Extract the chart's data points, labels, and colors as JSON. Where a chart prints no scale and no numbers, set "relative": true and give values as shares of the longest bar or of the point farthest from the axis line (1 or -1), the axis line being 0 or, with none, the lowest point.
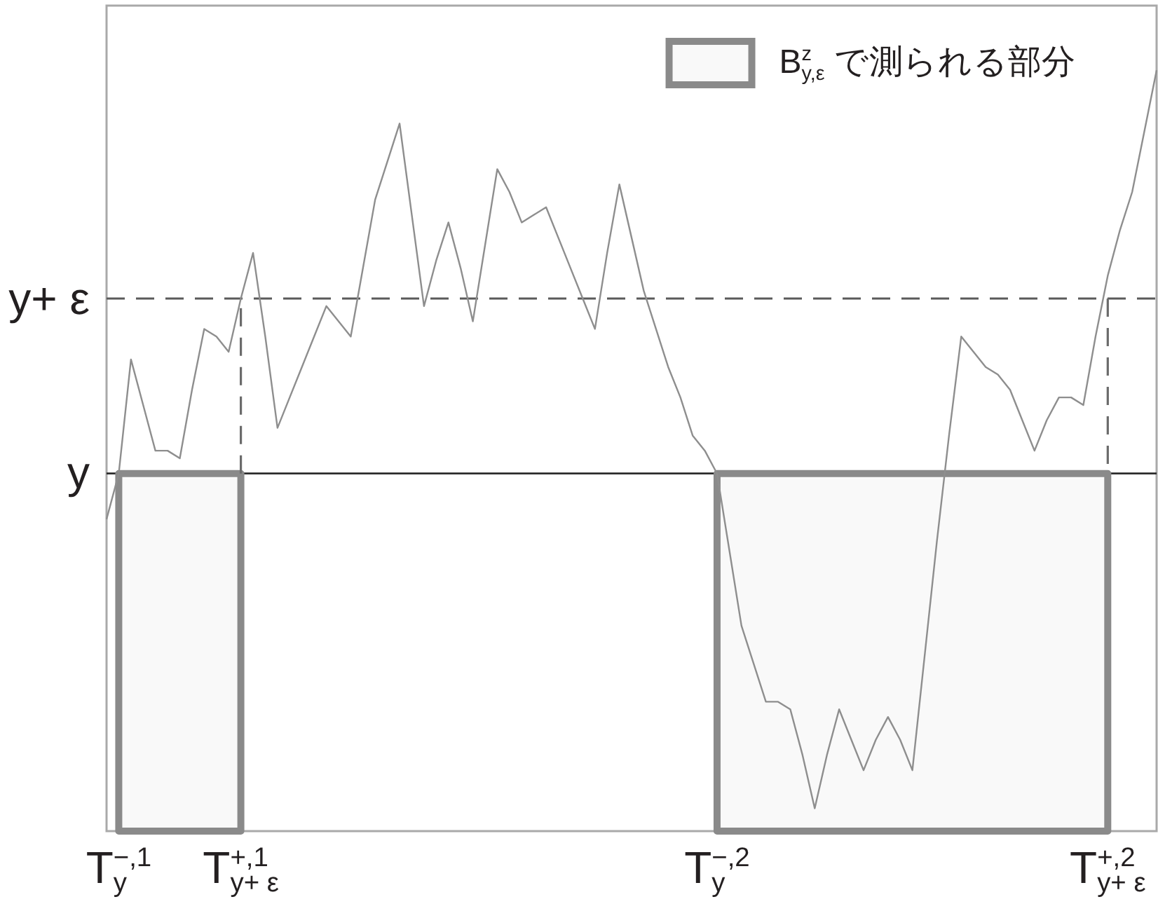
{
  "chart_data": {
    "type": "line",
    "relative": true,
    "categories": [
      null,
      "T$^{−,1}$$_{y}$",
      null,
      null,
      null,
      null,
      null,
      null,
      null,
      null,
      null,
      "T$^{+,1}$$_{y+ ε}$",
      null,
      null,
      null,
      null,
      null,
      null,
      null,
      null,
      null,
      null,
      null,
      null,
      null,
      null,
      null,
      null,
      null,
      null,
      null,
      null,
      null,
      null,
      null,
      null,
      null,
      null,
      null,
      null,
      null,
      null,
      null,
      null,
      null,
      null,
      null,
      null,
      null,
      null,
      "T$^{−,2}$$_{y}$",
      null,
      null,
      null,
      null,
      null,
      null,
      null,
      null,
      null,
      null,
      null,
      null,
      null,
      null,
      null,
      null,
      null,
      null,
      null,
      null,
      null,
      null,
      null,
      null,
      null,
      null,
      null,
      null,
      null,
      null,
      null,
      "T$^{+,2}$$_{y+ ε}$",
      null,
      null,
      null,
      null
    ],
    "legend": "top right",
    "ref_lines": [
      {
        "axis": "y",
        "value": 0.47,
        "label": "y",
        "color": "#2b2b2b"
      },
      {
        "axis": "y",
        "value": 0.7,
        "label": "y+ ε",
        "color": "#5a5a5a",
        "line_style": "dashed"
      }
    ],
    "series": [
      {
        "type": "area",
        "name": "B$^{z}$$_{y,ε}$ で測られる部分",
        "color": "#8a8a8a",
        "values": [
          null,
          0.47,
          0.47,
          0.47,
          0.47,
          0.47,
          0.47,
          0.47,
          0.47,
          0.47,
          0.47,
          0.47,
          null,
          null,
          null,
          null,
          null,
          null,
          null,
          null,
          null,
          null,
          null,
          null,
          null,
          null,
          null,
          null,
          null,
          null,
          null,
          null,
          null,
          null,
          null,
          null,
          null,
          null,
          null,
          null,
          null,
          null,
          null,
          null,
          null,
          null,
          null,
          null,
          null,
          null,
          0.47,
          0.47,
          0.47,
          0.47,
          0.47,
          0.47,
          0.47,
          0.47,
          0.47,
          0.47,
          0.47,
          0.47,
          0.47,
          0.47,
          0.47,
          0.47,
          0.47,
          0.47,
          0.47,
          0.47,
          0.47,
          0.47,
          0.47,
          0.47,
          0.47,
          0.47,
          0.47,
          0.47,
          0.47,
          0.47,
          0.47,
          0.47,
          0.47,
          null,
          null,
          null,
          null
        ]
      },
      {
        "type": "line",
        "color": "#6b6b6b",
        "line_style": "dashed",
        "x": [
          "T$^{+,1}$$_{y+ ε}$",
          "T$^{+,1}$$_{y+ ε}$",
          null,
          "T$^{+,2}$$_{y+ ε}$",
          "T$^{+,2}$$_{y+ ε}$"
        ],
        "values": [
          0.47,
          0.7,
          null,
          0.7,
          0.47
        ]
      },
      {
        "type": "line",
        "color": "#8e8e8e",
        "values": [
          0.41,
          0.47,
          0.62,
          0.56,
          0.5,
          0.5,
          0.49,
          0.58,
          0.66,
          0.65,
          0.63,
          0.7,
          0.76,
          0.65,
          0.53,
          0.57,
          0.61,
          0.65,
          0.69,
          0.67,
          0.65,
          0.74,
          0.83,
          0.88,
          0.93,
          0.81,
          0.69,
          0.75,
          0.8,
          0.74,
          0.67,
          0.77,
          0.87,
          0.84,
          0.8,
          0.81,
          0.82,
          0.78,
          0.74,
          0.7,
          0.66,
          0.76,
          0.85,
          0.78,
          0.71,
          0.66,
          0.61,
          0.57,
          0.52,
          0.5,
          0.47,
          0.37,
          0.27,
          0.22,
          0.17,
          0.17,
          0.16,
          0.1,
          0.03,
          0.1,
          0.16,
          0.12,
          0.08,
          0.12,
          0.15,
          0.12,
          0.08,
          0.23,
          0.38,
          0.52,
          0.65,
          0.63,
          0.61,
          0.6,
          0.58,
          0.54,
          0.5,
          0.54,
          0.57,
          0.57,
          0.56,
          0.65,
          0.73,
          0.79,
          0.84,
          0.92,
          1.0
        ]
      }
    ]
  }
}
